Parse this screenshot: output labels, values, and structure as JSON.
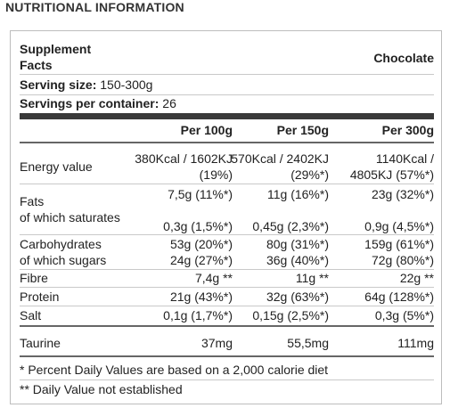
{
  "heading": "NUTRITIONAL INFORMATION",
  "facts_title": [
    "Supplement",
    "Facts"
  ],
  "flavor": "Chocolate",
  "serving_size_label": "Serving size:",
  "serving_size_value": "150-300g",
  "servings_label": "Servings per container:",
  "servings_value": "26",
  "columns": [
    "Per 100g",
    "Per 150g",
    "Per 300g"
  ],
  "rows": {
    "energy": {
      "label": "Energy value",
      "v1a": "380Kcal / 1602KJ",
      "v1b": "(19%)",
      "v2a": "570Kcal / 2402KJ",
      "v2b": "(29%*)",
      "v3a": "1140Kcal /",
      "v3b": "4805KJ (57%*)"
    },
    "fats": {
      "label": "Fats",
      "v1": "7,5g (11%*)",
      "v2": "11g (16%*)",
      "v3": "23g (32%*)"
    },
    "saturates": {
      "label": "of which saturates",
      "v1": "0,3g (1,5%*)",
      "v2": "0,45g (2,3%*)",
      "v3": "0,9g (4,5%*)"
    },
    "carbs": {
      "label": "Carbohydrates",
      "v1": "53g (20%*)",
      "v2": "80g (31%*)",
      "v3": "159g (61%*)"
    },
    "sugars": {
      "label": "of which sugars",
      "v1": "24g (27%*)",
      "v2": "36g (40%*)",
      "v3": "72g (80%*)"
    },
    "fibre": {
      "label": "Fibre",
      "v1": "7,4g **",
      "v2": "11g **",
      "v3": "22g **"
    },
    "protein": {
      "label": "Protein",
      "v1": "21g (43%*)",
      "v2": "32g (63%*)",
      "v3": "64g (128%*)"
    },
    "salt": {
      "label": "Salt",
      "v1": "0,1g (1,7%*)",
      "v2": "0,15g (2,5%*)",
      "v3": "0,3g (5%*)"
    },
    "taurine": {
      "label": "Taurine",
      "v1": "37mg",
      "v2": "55,5mg",
      "v3": "111mg"
    }
  },
  "footnotes": [
    "* Percent Daily Values are based on a 2,000 calorie diet",
    "** Daily Value not established"
  ]
}
